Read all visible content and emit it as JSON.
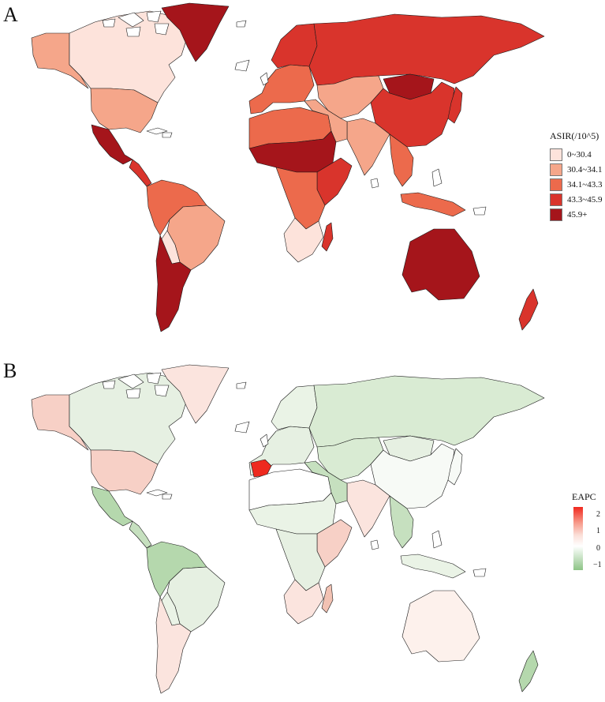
{
  "panel_a": {
    "label": "A",
    "legend": {
      "title": "ASIR(/10^5)",
      "items": [
        {
          "label": "0~30.4",
          "color": "#fde3db"
        },
        {
          "label": "30.4~34.1",
          "color": "#f5a68a"
        },
        {
          "label": "34.1~43.3",
          "color": "#ec6a4c"
        },
        {
          "label": "43.3~45.9",
          "color": "#d9342c"
        },
        {
          "label": "45.9+",
          "color": "#a5151b"
        }
      ]
    },
    "regions": [
      {
        "name": "alaska",
        "color": "#f5a68a"
      },
      {
        "name": "canada",
        "color": "#fde3db"
      },
      {
        "name": "usa",
        "color": "#f5a68a"
      },
      {
        "name": "mexico",
        "color": "#a5151b"
      },
      {
        "name": "central-america",
        "color": "#d9342c"
      },
      {
        "name": "greenland",
        "color": "#a5151b"
      },
      {
        "name": "northern-south-america",
        "color": "#ec6a4c"
      },
      {
        "name": "brazil",
        "color": "#f5a68a"
      },
      {
        "name": "bolivia",
        "color": "#fde3db"
      },
      {
        "name": "southern-cone",
        "color": "#a5151b"
      },
      {
        "name": "western-europe",
        "color": "#ec6a4c"
      },
      {
        "name": "scandinavia",
        "color": "#d9342c"
      },
      {
        "name": "russia",
        "color": "#d9342c"
      },
      {
        "name": "central-asia",
        "color": "#f5a68a"
      },
      {
        "name": "mongolia",
        "color": "#a5151b"
      },
      {
        "name": "china",
        "color": "#d9342c"
      },
      {
        "name": "india",
        "color": "#f5a68a"
      },
      {
        "name": "southeast-asia",
        "color": "#ec6a4c"
      },
      {
        "name": "japan",
        "color": "#d9342c"
      },
      {
        "name": "north-africa",
        "color": "#ec6a4c"
      },
      {
        "name": "sahel",
        "color": "#a5151b"
      },
      {
        "name": "east-africa",
        "color": "#d9342c"
      },
      {
        "name": "central-africa",
        "color": "#ec6a4c"
      },
      {
        "name": "southern-africa",
        "color": "#fde3db"
      },
      {
        "name": "madagascar",
        "color": "#d9342c"
      },
      {
        "name": "middle-east",
        "color": "#f5a68a"
      },
      {
        "name": "indonesia",
        "color": "#ec6a4c"
      },
      {
        "name": "australia",
        "color": "#a5151b"
      },
      {
        "name": "new-zealand",
        "color": "#d9342c"
      }
    ]
  },
  "panel_b": {
    "label": "B",
    "legend": {
      "title": "EAPC",
      "ticks": [
        "2",
        "1",
        "0",
        "−1"
      ],
      "colors": {
        "high": "#f0281e",
        "mid": "#ffffff",
        "low": "#8dc486"
      }
    },
    "regions": [
      {
        "name": "alaska",
        "color": "#f7d0c6"
      },
      {
        "name": "canada",
        "color": "#e6f0e2"
      },
      {
        "name": "usa",
        "color": "#f7d0c6"
      },
      {
        "name": "mexico",
        "color": "#b5d8ad"
      },
      {
        "name": "central-america",
        "color": "#c6e0bf"
      },
      {
        "name": "greenland",
        "color": "#fbe4de"
      },
      {
        "name": "northern-south-america",
        "color": "#b5d8ad"
      },
      {
        "name": "brazil",
        "color": "#e6f0e2"
      },
      {
        "name": "bolivia",
        "color": "#eaf3e6"
      },
      {
        "name": "southern-cone",
        "color": "#fbe4de"
      },
      {
        "name": "western-europe",
        "color": "#e6f0e2"
      },
      {
        "name": "spain",
        "color": "#ee2a1f"
      },
      {
        "name": "scandinavia",
        "color": "#eaf3e6"
      },
      {
        "name": "russia",
        "color": "#d9ebd3"
      },
      {
        "name": "central-asia",
        "color": "#d9ebd3"
      },
      {
        "name": "mongolia",
        "color": "#e6f0e2"
      },
      {
        "name": "china",
        "color": "#f7faf6"
      },
      {
        "name": "india",
        "color": "#fbe4de"
      },
      {
        "name": "southeast-asia",
        "color": "#c6e0bf"
      },
      {
        "name": "japan",
        "color": "#f7faf6"
      },
      {
        "name": "north-africa",
        "color": "#ffffff"
      },
      {
        "name": "sahel",
        "color": "#eaf3e6"
      },
      {
        "name": "east-africa",
        "color": "#f7d0c6"
      },
      {
        "name": "central-africa",
        "color": "#e6f0e2"
      },
      {
        "name": "southern-africa",
        "color": "#fbe4de"
      },
      {
        "name": "madagascar",
        "color": "#f2c2b3"
      },
      {
        "name": "middle-east",
        "color": "#c6e0bf"
      },
      {
        "name": "indonesia",
        "color": "#eaf3e6"
      },
      {
        "name": "australia",
        "color": "#fdf1ec"
      },
      {
        "name": "new-zealand",
        "color": "#b5d8ad"
      }
    ]
  }
}
